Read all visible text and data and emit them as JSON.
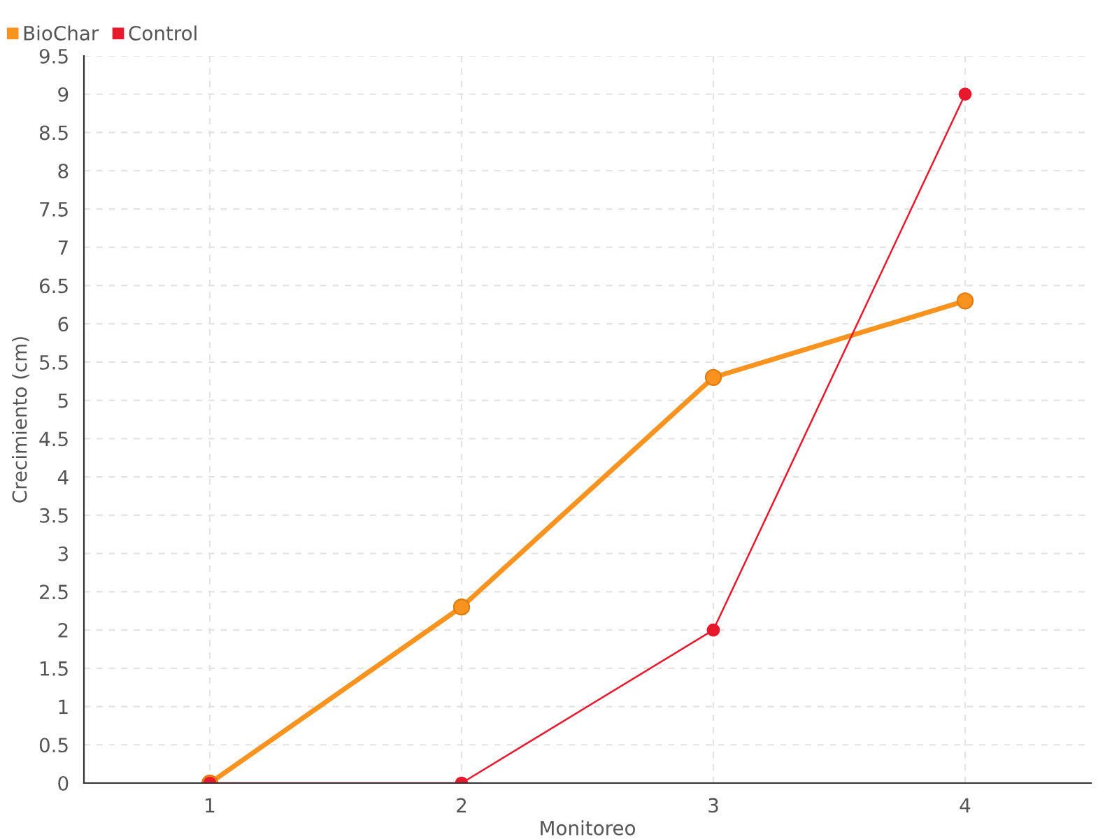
{
  "chart_data": {
    "type": "line",
    "xlabel": "Monitoreo",
    "ylabel": "Crecimiento (cm)",
    "categories": [
      "1",
      "2",
      "3",
      "4"
    ],
    "series": [
      {
        "name": "BioChar",
        "color": "#f7931e",
        "values": [
          0,
          2.3,
          5.3,
          6.3
        ]
      },
      {
        "name": "Control",
        "color": "#e8192c",
        "values": [
          0,
          0,
          2,
          9
        ]
      }
    ],
    "ylim": [
      0,
      9.5
    ],
    "yticks": [
      0,
      0.5,
      1,
      1.5,
      2,
      2.5,
      3,
      3.5,
      4,
      4.5,
      5,
      5.5,
      6,
      6.5,
      7,
      7.5,
      8,
      8.5,
      9,
      9.5
    ],
    "grid": true,
    "legend": "top left",
    "marker": "circle",
    "line_style": "solid"
  }
}
